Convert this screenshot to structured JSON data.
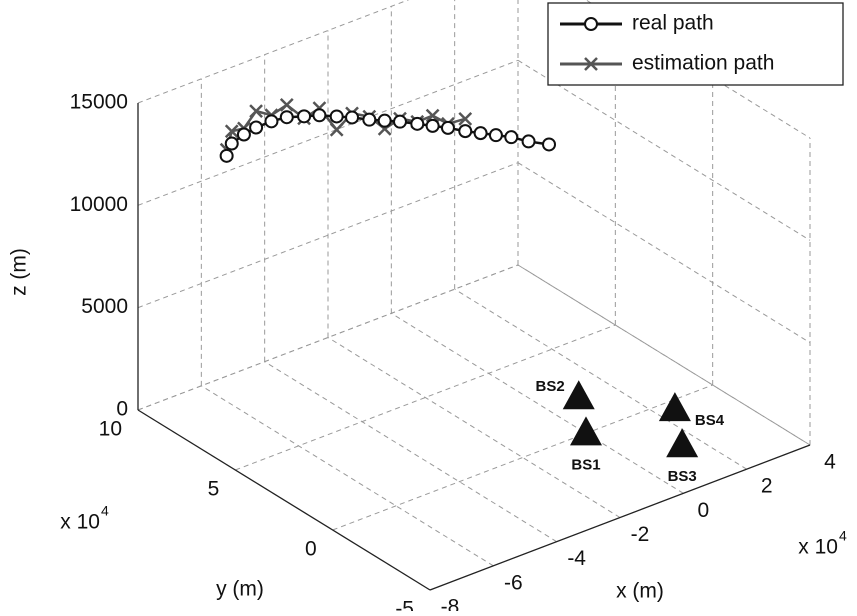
{
  "chart_data": {
    "type": "line3d",
    "x_label": "x (m)",
    "y_label": "y (m)",
    "z_label": "z (m)",
    "x_multiplier": "x 10",
    "x_multiplier_exponent": "4",
    "y_multiplier": "x 10",
    "y_multiplier_exponent": "4",
    "xlim": [
      -8,
      4
    ],
    "xticks": [
      -8,
      -6,
      -4,
      -2,
      0,
      2,
      4
    ],
    "ylim": [
      -5,
      10
    ],
    "yticks": [
      -5,
      0,
      5,
      10
    ],
    "zlim": [
      0,
      15000
    ],
    "zticks": [
      0,
      5000,
      10000,
      15000
    ],
    "grid": true,
    "legend": "top-right",
    "series": [
      {
        "name": "real path",
        "color": "#111111",
        "marker": "circle",
        "x": [
          -6.0,
          -5.9,
          -5.7,
          -5.5,
          -5.2,
          -4.9,
          -4.6,
          -4.3,
          -4.0,
          -3.7,
          -3.4,
          -3.1,
          -2.8,
          -2.5,
          -2.2,
          -1.9,
          -1.6,
          -1.3,
          -1.0,
          -0.7,
          -0.4,
          0.0
        ],
        "y": [
          8.7,
          8.6,
          8.3,
          8.0,
          7.7,
          7.4,
          7.0,
          6.7,
          6.3,
          6.0,
          5.6,
          5.3,
          5.0,
          4.6,
          4.3,
          4.0,
          3.6,
          3.3,
          3.0,
          2.7,
          2.3,
          1.9
        ],
        "z": [
          12000,
          12600,
          13100,
          13500,
          13800,
          14000,
          14100,
          14150,
          14150,
          14100,
          14050,
          14000,
          13950,
          13900,
          13800,
          13700,
          13600,
          13500,
          13400,
          13300,
          13150,
          13000
        ]
      },
      {
        "name": "estimation path",
        "color": "#555555",
        "marker": "x",
        "x": [
          -6.0,
          -5.9,
          -5.7,
          -5.5,
          -5.2,
          -4.9,
          -4.6,
          -4.3,
          -4.0,
          -3.7,
          -3.4,
          -3.1,
          -2.8,
          -2.5,
          -2.2,
          -1.9,
          -1.6
        ],
        "y": [
          8.7,
          8.6,
          8.3,
          8.0,
          7.7,
          7.4,
          7.0,
          6.7,
          6.3,
          6.0,
          5.6,
          5.3,
          5.0,
          4.6,
          4.3,
          4.0,
          3.6
        ],
        "z": [
          12300,
          13200,
          13400,
          14300,
          14100,
          14600,
          14000,
          14500,
          13500,
          14300,
          14200,
          13600,
          14100,
          14000,
          14300,
          13900,
          14200
        ]
      }
    ],
    "base_stations": [
      {
        "name": "BS1",
        "x": 0,
        "y": 0
      },
      {
        "name": "BS2",
        "x": 1,
        "y": 2
      },
      {
        "name": "BS3",
        "x": 1.5,
        "y": -2.5
      },
      {
        "name": "BS4",
        "x": 2.5,
        "y": -0.5
      }
    ]
  }
}
